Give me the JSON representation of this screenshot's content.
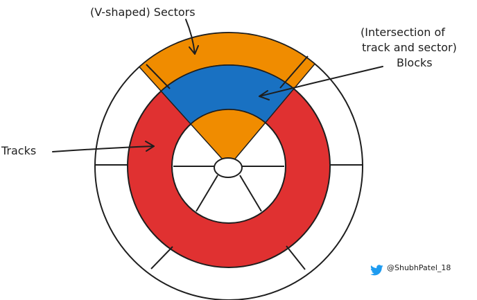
{
  "diagram": {
    "labels": {
      "sectors": "(V-shaped) Sectors",
      "blocks_line1": "(Intersection of",
      "blocks_line2": "track and sector)",
      "blocks_line3": "Blocks",
      "tracks": "Tracks"
    },
    "credit": {
      "handle": "@ShubhPatel_18",
      "icon": "twitter-bird-icon"
    },
    "colors": {
      "sector_fill": "#f08c00",
      "block_fill": "#1971c2",
      "track_fill": "#e03131",
      "outline": "#1e1e1e",
      "background": "#ffffff",
      "twitter_blue": "#1d9bf0"
    }
  }
}
